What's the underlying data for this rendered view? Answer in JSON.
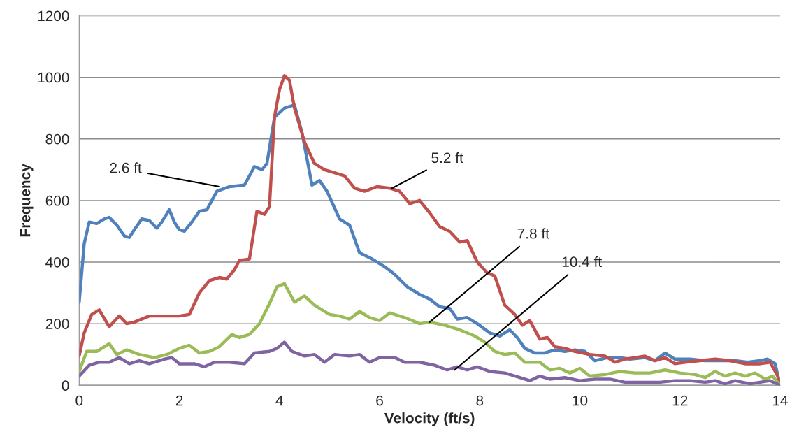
{
  "chart_data": {
    "type": "line",
    "xlabel": "Velocity (ft/s)",
    "ylabel": "Frequency",
    "xlim": [
      0,
      14
    ],
    "xticks": [
      0,
      2,
      4,
      6,
      8,
      10,
      12,
      14
    ],
    "ylim": [
      0,
      1200
    ],
    "yticks": [
      0,
      200,
      400,
      600,
      800,
      1000,
      1200
    ],
    "grid": "y",
    "legend": false,
    "marker": "none",
    "line_style": "solid",
    "series": [
      {
        "color": "#4f81bd",
        "x": [
          0,
          0.1,
          0.2,
          0.35,
          0.5,
          0.6,
          0.75,
          0.9,
          1.0,
          1.1,
          1.25,
          1.4,
          1.55,
          1.65,
          1.8,
          1.9,
          2.0,
          2.1,
          2.25,
          2.4,
          2.55,
          2.75,
          3.0,
          3.3,
          3.5,
          3.65,
          3.75,
          3.9,
          4.1,
          4.3,
          4.45,
          4.65,
          4.8,
          4.95,
          5.2,
          5.4,
          5.6,
          5.85,
          6.1,
          6.3,
          6.55,
          6.8,
          7.0,
          7.2,
          7.4,
          7.55,
          7.75,
          7.95,
          8.2,
          8.4,
          8.6,
          8.75,
          8.9,
          9.1,
          9.3,
          9.5,
          9.7,
          9.9,
          10.1,
          10.3,
          10.55,
          10.8,
          11.0,
          11.3,
          11.5,
          11.7,
          11.9,
          12.2,
          12.5,
          12.8,
          13.1,
          13.35,
          13.6,
          13.75,
          13.9,
          14.0
        ],
        "values": [
          270,
          460,
          530,
          525,
          540,
          545,
          520,
          485,
          480,
          505,
          540,
          535,
          510,
          530,
          570,
          530,
          505,
          500,
          530,
          565,
          570,
          630,
          645,
          650,
          710,
          700,
          720,
          870,
          900,
          910,
          820,
          650,
          665,
          630,
          540,
          520,
          430,
          410,
          385,
          360,
          320,
          295,
          280,
          255,
          250,
          215,
          220,
          200,
          170,
          160,
          180,
          155,
          120,
          105,
          105,
          115,
          110,
          115,
          110,
          80,
          90,
          90,
          85,
          90,
          80,
          105,
          85,
          85,
          80,
          80,
          80,
          75,
          80,
          85,
          70,
          0
        ]
      },
      {
        "color": "#c0504d",
        "x": [
          0,
          0.1,
          0.25,
          0.4,
          0.6,
          0.8,
          0.95,
          1.1,
          1.4,
          1.7,
          2.0,
          2.2,
          2.4,
          2.6,
          2.8,
          2.95,
          3.1,
          3.2,
          3.4,
          3.55,
          3.7,
          3.8,
          3.9,
          4.0,
          4.1,
          4.2,
          4.3,
          4.5,
          4.7,
          4.9,
          5.1,
          5.3,
          5.5,
          5.7,
          5.95,
          6.2,
          6.4,
          6.6,
          6.8,
          7.0,
          7.2,
          7.4,
          7.6,
          7.75,
          7.95,
          8.15,
          8.3,
          8.5,
          8.7,
          8.85,
          9.0,
          9.2,
          9.35,
          9.5,
          9.7,
          9.9,
          10.2,
          10.5,
          10.7,
          10.9,
          11.1,
          11.3,
          11.5,
          11.7,
          11.9,
          12.1,
          12.4,
          12.7,
          13.0,
          13.3,
          13.6,
          13.8,
          13.95,
          14.0
        ],
        "values": [
          95,
          170,
          230,
          245,
          190,
          225,
          200,
          205,
          225,
          225,
          225,
          230,
          300,
          340,
          350,
          345,
          375,
          405,
          410,
          565,
          555,
          580,
          870,
          960,
          1005,
          990,
          900,
          790,
          720,
          700,
          690,
          680,
          640,
          630,
          645,
          640,
          630,
          590,
          600,
          560,
          515,
          500,
          465,
          470,
          400,
          365,
          355,
          260,
          230,
          195,
          210,
          150,
          155,
          125,
          120,
          110,
          100,
          95,
          75,
          85,
          90,
          95,
          80,
          90,
          70,
          75,
          80,
          85,
          80,
          70,
          70,
          75,
          30,
          0
        ]
      },
      {
        "color": "#9bbb59",
        "x": [
          0,
          0.15,
          0.35,
          0.6,
          0.75,
          0.95,
          1.2,
          1.5,
          1.75,
          2.0,
          2.2,
          2.4,
          2.6,
          2.8,
          3.05,
          3.2,
          3.4,
          3.6,
          3.8,
          3.95,
          4.1,
          4.2,
          4.3,
          4.5,
          4.7,
          5.0,
          5.2,
          5.4,
          5.6,
          5.8,
          6.0,
          6.2,
          6.5,
          6.8,
          7.0,
          7.3,
          7.6,
          7.9,
          8.1,
          8.3,
          8.5,
          8.7,
          8.9,
          9.2,
          9.4,
          9.6,
          9.8,
          10.0,
          10.2,
          10.5,
          10.8,
          11.1,
          11.4,
          11.7,
          12.0,
          12.3,
          12.5,
          12.7,
          12.9,
          13.1,
          13.3,
          13.5,
          13.7,
          13.85,
          14.0
        ],
        "values": [
          45,
          110,
          110,
          135,
          100,
          115,
          100,
          90,
          100,
          120,
          130,
          105,
          110,
          125,
          165,
          155,
          165,
          200,
          265,
          320,
          330,
          300,
          270,
          290,
          260,
          230,
          225,
          215,
          240,
          220,
          210,
          235,
          220,
          200,
          205,
          195,
          180,
          160,
          140,
          110,
          100,
          105,
          75,
          75,
          50,
          55,
          40,
          55,
          30,
          35,
          45,
          40,
          40,
          50,
          40,
          35,
          25,
          45,
          30,
          40,
          30,
          40,
          20,
          30,
          0
        ]
      },
      {
        "color": "#8064a2",
        "x": [
          0,
          0.2,
          0.4,
          0.6,
          0.8,
          1.0,
          1.2,
          1.4,
          1.7,
          1.85,
          2.0,
          2.3,
          2.5,
          2.7,
          3.0,
          3.3,
          3.5,
          3.8,
          3.95,
          4.1,
          4.25,
          4.5,
          4.7,
          4.9,
          5.1,
          5.4,
          5.6,
          5.8,
          6.0,
          6.3,
          6.5,
          6.8,
          7.1,
          7.35,
          7.55,
          7.75,
          7.95,
          8.2,
          8.5,
          8.8,
          9.0,
          9.2,
          9.4,
          9.7,
          10.0,
          10.3,
          10.6,
          10.9,
          11.2,
          11.6,
          11.9,
          12.2,
          12.5,
          12.7,
          12.9,
          13.1,
          13.4,
          13.6,
          13.8,
          14.0
        ],
        "values": [
          30,
          65,
          75,
          75,
          90,
          70,
          80,
          70,
          85,
          90,
          70,
          70,
          60,
          75,
          75,
          70,
          105,
          110,
          120,
          140,
          110,
          95,
          100,
          75,
          100,
          95,
          100,
          75,
          90,
          90,
          75,
          75,
          65,
          50,
          60,
          50,
          60,
          45,
          40,
          25,
          15,
          30,
          20,
          25,
          15,
          20,
          20,
          10,
          10,
          10,
          15,
          15,
          10,
          15,
          5,
          15,
          5,
          10,
          15,
          0
        ]
      }
    ],
    "annotations": [
      {
        "text": "2.6 ft",
        "x": 2.8,
        "y": 645
      },
      {
        "text": "5.2 ft",
        "x": 6.25,
        "y": 640
      },
      {
        "text": "7.8 ft",
        "x": 7.0,
        "y": 205
      },
      {
        "text": "10.4 ft",
        "x": 7.5,
        "y": 50
      }
    ]
  }
}
